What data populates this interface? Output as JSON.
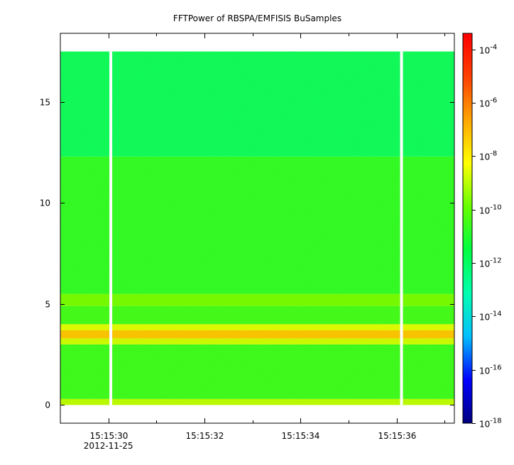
{
  "chart_data": {
    "type": "heatmap",
    "title": "FFTPower of RBSPA/EMFISIS  BuSamples",
    "x": {
      "ticks": [
        {
          "label": "15:15:30",
          "value": 30
        },
        {
          "label": "15:15:32",
          "value": 32
        },
        {
          "label": "15:15:34",
          "value": 34
        },
        {
          "label": "15:15:36",
          "value": 36
        }
      ],
      "minor_ticks": [
        31,
        33,
        35,
        37
      ],
      "date_label": "2012-11-25",
      "range": [
        29.0,
        37.2
      ]
    },
    "y": {
      "ticks": [
        {
          "label": "0",
          "value": 0
        },
        {
          "label": "5",
          "value": 5
        },
        {
          "label": "10",
          "value": 10
        },
        {
          "label": "15",
          "value": 15
        }
      ],
      "range": [
        -0.9,
        18.4
      ]
    },
    "data_extent": {
      "x": [
        29.0,
        37.2
      ],
      "y": [
        0,
        17.5
      ]
    },
    "gaps_x": [
      30.05,
      36.1
    ],
    "bands": [
      {
        "y": [
          0.0,
          0.3
        ],
        "log_power": -9.0
      },
      {
        "y": [
          0.3,
          3.0
        ],
        "log_power": -10.7
      },
      {
        "y": [
          3.0,
          3.3
        ],
        "log_power": -8.8
      },
      {
        "y": [
          3.3,
          3.7
        ],
        "log_power": -7.2
      },
      {
        "y": [
          3.7,
          4.0
        ],
        "log_power": -8.6
      },
      {
        "y": [
          4.0,
          4.9
        ],
        "log_power": -10.6
      },
      {
        "y": [
          4.9,
          5.5
        ],
        "log_power": -9.8
      },
      {
        "y": [
          5.5,
          12.3
        ],
        "log_power": -10.9
      },
      {
        "y": [
          12.3,
          17.5
        ],
        "log_power": -12.0
      }
    ],
    "colorbar": {
      "scale": "log",
      "range": [
        -18,
        -3.4
      ],
      "ticks": [
        {
          "base": "10",
          "exp": "-4",
          "value": -4
        },
        {
          "base": "10",
          "exp": "-6",
          "value": -6
        },
        {
          "base": "10",
          "exp": "-8",
          "value": -8
        },
        {
          "base": "10",
          "exp": "-10",
          "value": -10
        },
        {
          "base": "10",
          "exp": "-12",
          "value": -12
        },
        {
          "base": "10",
          "exp": "-14",
          "value": -14
        },
        {
          "base": "10",
          "exp": "-16",
          "value": -16
        },
        {
          "base": "10",
          "exp": "-18",
          "value": -18
        }
      ],
      "colormap": [
        "#00007f",
        "#0000ff",
        "#00bfff",
        "#00ffb0",
        "#00ff40",
        "#66ff00",
        "#ffff00",
        "#ffa500",
        "#ff4000",
        "#ff0000"
      ]
    }
  }
}
